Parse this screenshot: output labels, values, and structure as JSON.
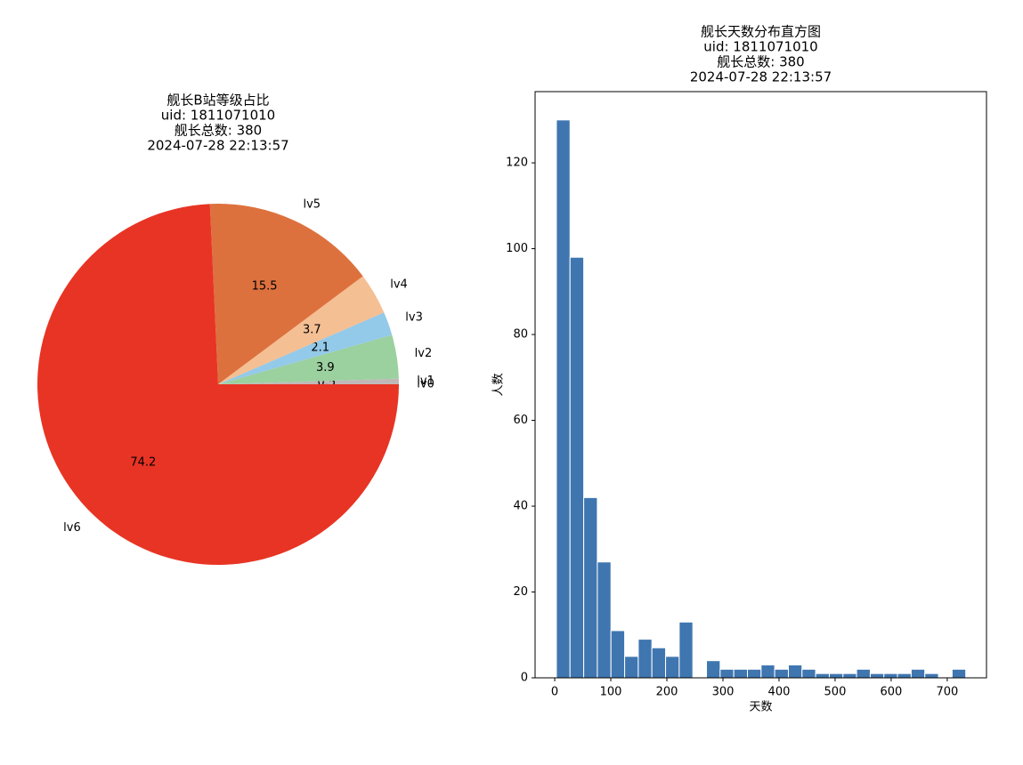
{
  "chart_data": [
    {
      "type": "pie",
      "title": [
        "舰长B站等级占比",
        "uid: 1811071010",
        "舰长总数: 380",
        "2024-07-28 22:13:57"
      ],
      "categories": [
        "lv0",
        "lv1",
        "lv2",
        "lv3",
        "lv4",
        "lv5",
        "lv6"
      ],
      "values": [
        0.0,
        0.5,
        3.9,
        2.1,
        3.7,
        15.5,
        74.2
      ],
      "value_labels": [
        "0.0",
        "0.5",
        "3.9",
        "2.1",
        "3.7",
        "15.5",
        "74.2"
      ],
      "colors": [
        "#d9d9d9",
        "#c0b8b8",
        "#9bd09f",
        "#93c9e9",
        "#f4bf93",
        "#dd713e",
        "#e83424"
      ]
    },
    {
      "type": "histogram",
      "title": [
        "舰长天数分布直方图",
        "uid: 1811071010",
        "舰长总数: 380",
        "2024-07-28 22:13:57"
      ],
      "xlabel": "天数",
      "ylabel": "人数",
      "color": "#3f76b0",
      "bins": [
        3,
        27.3,
        51.7,
        76,
        100.3,
        124.7,
        149,
        173.3,
        197.7,
        222,
        246.3,
        270.7,
        295,
        319.3,
        343.7,
        368,
        392.3,
        416.7,
        441,
        465.3,
        489.7,
        514,
        538.3,
        562.7,
        587,
        611.3,
        635.7,
        660,
        684.3,
        708.7,
        733
      ],
      "values": [
        130,
        98,
        42,
        27,
        11,
        5,
        9,
        7,
        5,
        13,
        0,
        4,
        2,
        2,
        2,
        3,
        2,
        3,
        2,
        1,
        1,
        1,
        2,
        1,
        1,
        1,
        2,
        1,
        0,
        2
      ],
      "xlim": [
        -35,
        770
      ],
      "ylim": [
        0,
        136.6
      ],
      "xticks": [
        0,
        100,
        200,
        300,
        400,
        500,
        600,
        700
      ],
      "yticks": [
        0,
        20,
        40,
        60,
        80,
        100,
        120
      ]
    }
  ]
}
